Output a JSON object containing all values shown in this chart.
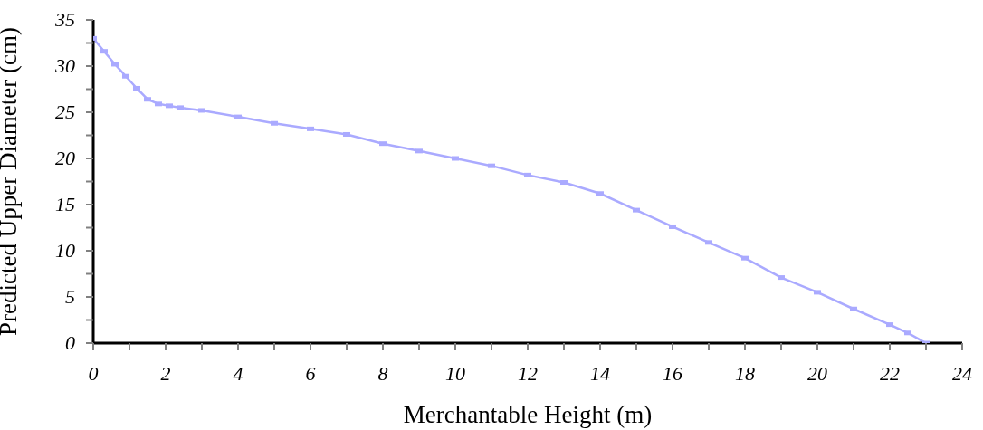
{
  "chart_data": {
    "type": "line",
    "xlabel": "Merchantable Height (m)",
    "ylabel": "Predicted Upper Diameter (cm)",
    "x": [
      0,
      0.3,
      0.6,
      0.9,
      1.2,
      1.5,
      1.8,
      2.1,
      2.4,
      3,
      4,
      5,
      6,
      7,
      8,
      9,
      10,
      11,
      12,
      13,
      14,
      15,
      16,
      17,
      18,
      19,
      20,
      21,
      22,
      22.5,
      23
    ],
    "series": [
      {
        "color": "#aaaaff",
        "values": [
          33.0,
          31.6,
          30.2,
          28.9,
          27.6,
          26.4,
          25.9,
          25.7,
          25.5,
          25.2,
          24.5,
          23.8,
          23.2,
          22.6,
          21.6,
          20.8,
          20.0,
          19.2,
          18.2,
          17.4,
          16.2,
          14.4,
          12.6,
          10.9,
          9.2,
          7.1,
          5.5,
          3.7,
          2.0,
          1.1,
          0
        ]
      }
    ],
    "xlim": [
      0,
      24
    ],
    "xticks": [
      0,
      {
        "value": 1,
        "label": null
      },
      2,
      {
        "value": 3,
        "label": null
      },
      4,
      {
        "value": 5,
        "label": null
      },
      6,
      {
        "value": 7,
        "label": null
      },
      8,
      {
        "value": 9,
        "label": null
      },
      10,
      {
        "value": 11,
        "label": null
      },
      12,
      {
        "value": 13,
        "label": null
      },
      14,
      {
        "value": 15,
        "label": null
      },
      16,
      {
        "value": 17,
        "label": null
      },
      18,
      {
        "value": 19,
        "label": null
      },
      20,
      {
        "value": 21,
        "label": null
      },
      22,
      {
        "value": 23,
        "label": null
      },
      24
    ],
    "ylim": [
      0,
      35
    ],
    "yticks": [
      0,
      {
        "value": 2.5,
        "label": null
      },
      5,
      {
        "value": 7.5,
        "label": null
      },
      10,
      {
        "value": 12.5,
        "label": null
      },
      15,
      {
        "value": 17.5,
        "label": null
      },
      20,
      {
        "value": 22.5,
        "label": null
      },
      25,
      {
        "value": 27.5,
        "label": null
      },
      30,
      {
        "value": 32.5,
        "label": null
      },
      35
    ],
    "marker": "square",
    "grid": false,
    "legend": false
  }
}
